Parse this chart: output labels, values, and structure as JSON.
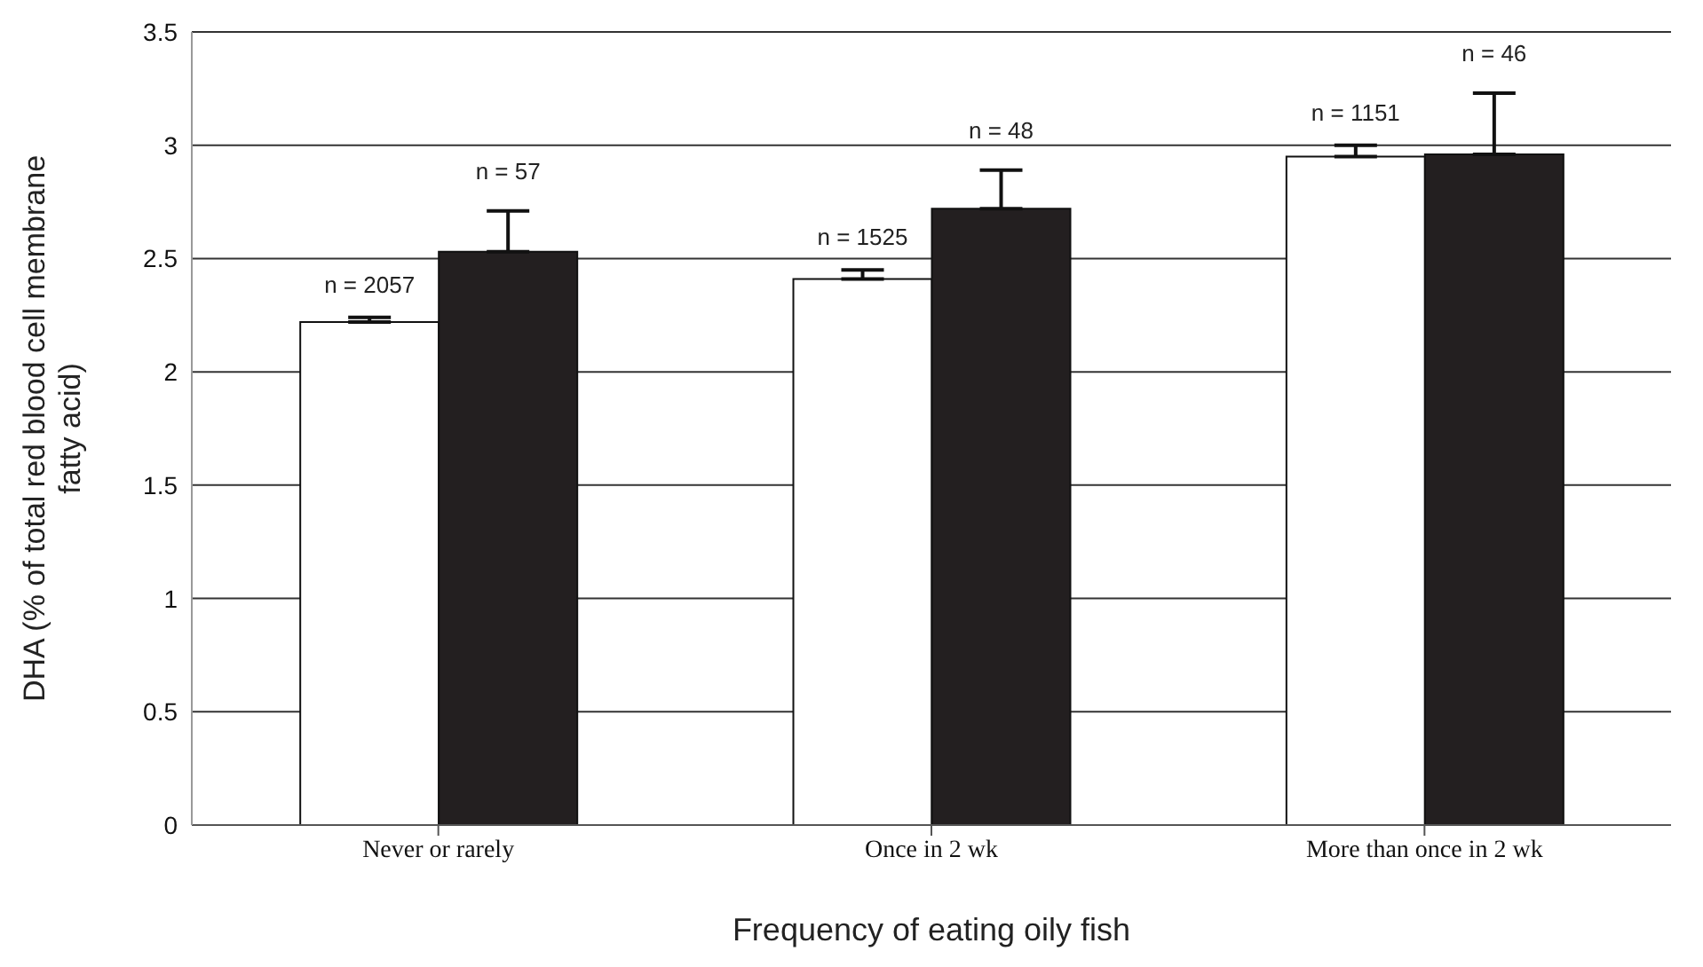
{
  "chart_data": {
    "type": "bar",
    "xlabel": "Frequency of eating oily fish",
    "ylabel": "DHA (% of total red blood cell membrane fatty acid)",
    "categories": [
      "Never or rarely",
      "Once in 2 wk",
      "More than once in 2 wk"
    ],
    "series": [
      {
        "color": "#ffffff",
        "values": [
          2.22,
          2.41,
          2.95
        ],
        "errors": [
          [
            2.22,
            2.24
          ],
          [
            2.41,
            2.45
          ],
          [
            2.95,
            3.0
          ]
        ]
      },
      {
        "color": "#231f20",
        "values": [
          2.53,
          2.72,
          2.96
        ],
        "errors": [
          [
            2.53,
            2.71
          ],
          [
            2.72,
            2.89
          ],
          [
            2.96,
            3.23
          ]
        ]
      }
    ],
    "annotations": [
      "n = 2057",
      "n = 57",
      "n = 1525",
      "n = 48",
      "n = 1151",
      "n = 46"
    ],
    "ylim": [
      0,
      3.5
    ],
    "yticks": [
      0,
      0.5,
      1,
      1.5,
      2,
      2.5,
      3,
      3.5
    ],
    "grid": "y",
    "legend": false
  }
}
